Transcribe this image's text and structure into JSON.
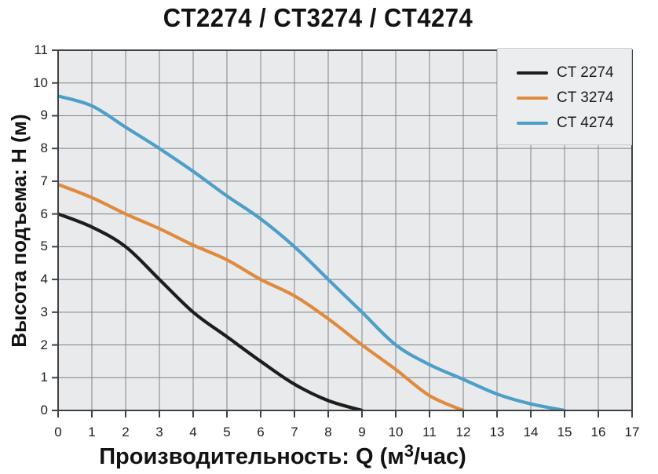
{
  "title": "CT2274 / CT3274 / CT4274",
  "axes": {
    "y_label": "Высота подъема: H (м)",
    "x_label_prefix": "Производительность: Q (м",
    "x_label_sup": "3",
    "x_label_suffix": "/час)",
    "x_ticks": [
      "0",
      "1",
      "2",
      "3",
      "4",
      "5",
      "6",
      "7",
      "8",
      "9",
      "10",
      "11",
      "12",
      "13",
      "14",
      "15",
      "16",
      "17"
    ],
    "y_ticks": [
      "0",
      "1",
      "2",
      "3",
      "4",
      "5",
      "6",
      "7",
      "8",
      "9",
      "10",
      "11"
    ]
  },
  "legend": {
    "items": [
      {
        "label": "CT 2274",
        "color": "#1d1d1d"
      },
      {
        "label": "CT 3274",
        "color": "#e08a3e"
      },
      {
        "label": "CT 4274",
        "color": "#4d9fc8"
      }
    ]
  },
  "colors": {
    "plot_background": "#e9eaec",
    "grid": "#7e8286",
    "axis": "#3f4245",
    "legend_background": "#ecedef",
    "text": "#121212",
    "series_black": "#1d1d1d",
    "series_orange": "#e08a3e",
    "series_blue": "#4d9fc8"
  },
  "chart_data": {
    "type": "line",
    "title": "CT2274 / CT3274 / CT4274",
    "xlabel": "Производительность: Q (м³/час)",
    "ylabel": "Высота подъема: H (м)",
    "xlim": [
      0,
      17
    ],
    "ylim": [
      0,
      11
    ],
    "x_tick_step": 1,
    "y_tick_step": 1,
    "grid": true,
    "legend_position": "top-right",
    "series": [
      {
        "name": "CT 2274",
        "color": "#1d1d1d",
        "points": [
          [
            0,
            6.0
          ],
          [
            1,
            5.6
          ],
          [
            2,
            5.0
          ],
          [
            3,
            4.0
          ],
          [
            4,
            3.0
          ],
          [
            5,
            2.25
          ],
          [
            6,
            1.5
          ],
          [
            7,
            0.8
          ],
          [
            8,
            0.3
          ],
          [
            9,
            0
          ]
        ]
      },
      {
        "name": "CT 3274",
        "color": "#e08a3e",
        "points": [
          [
            0,
            6.9
          ],
          [
            1,
            6.5
          ],
          [
            2,
            6.0
          ],
          [
            3,
            5.55
          ],
          [
            4,
            5.05
          ],
          [
            5,
            4.6
          ],
          [
            6,
            4.0
          ],
          [
            7,
            3.5
          ],
          [
            8,
            2.8
          ],
          [
            9,
            2.0
          ],
          [
            10,
            1.25
          ],
          [
            11,
            0.45
          ],
          [
            12,
            0
          ]
        ]
      },
      {
        "name": "CT 4274",
        "color": "#4d9fc8",
        "points": [
          [
            0,
            9.6
          ],
          [
            1,
            9.3
          ],
          [
            2,
            8.65
          ],
          [
            3,
            8.0
          ],
          [
            4,
            7.3
          ],
          [
            5,
            6.55
          ],
          [
            6,
            5.85
          ],
          [
            7,
            5.0
          ],
          [
            8,
            4.0
          ],
          [
            9,
            3.0
          ],
          [
            10,
            2.0
          ],
          [
            11,
            1.4
          ],
          [
            12,
            0.95
          ],
          [
            13,
            0.5
          ],
          [
            14,
            0.2
          ],
          [
            15,
            0
          ]
        ]
      }
    ]
  }
}
